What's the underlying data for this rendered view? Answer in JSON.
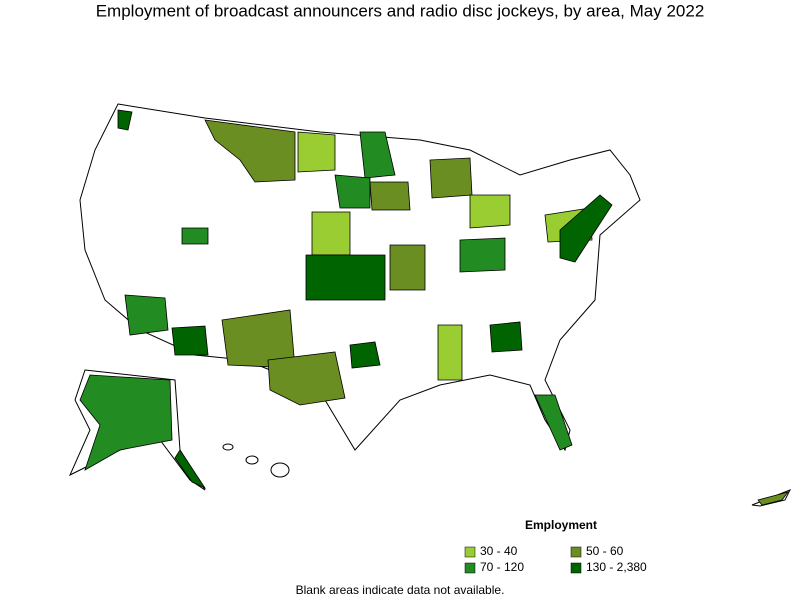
{
  "title": "Employment of broadcast announcers and radio disc jockeys, by area, May 2022",
  "legend": {
    "title": "Employment",
    "items": [
      {
        "label": "30 - 40",
        "color": "#9acd32"
      },
      {
        "label": "50 - 60",
        "color": "#6b8e23"
      },
      {
        "label": "70 - 120",
        "color": "#228b22"
      },
      {
        "label": "130 - 2,380",
        "color": "#006400"
      }
    ]
  },
  "footnote": "Blank areas indicate data not available."
}
